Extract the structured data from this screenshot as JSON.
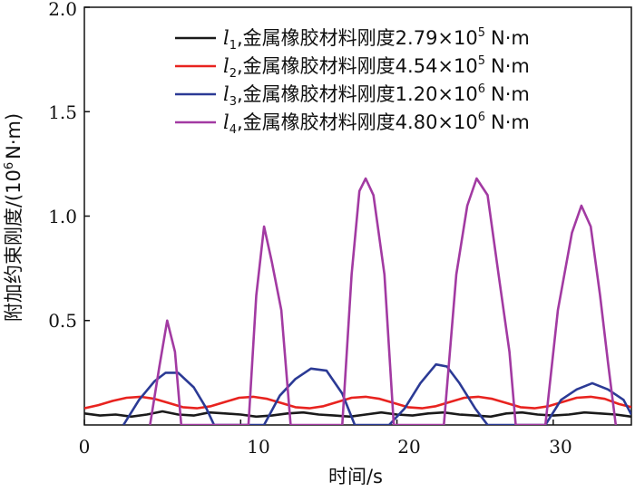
{
  "chart_data": {
    "type": "line",
    "title": "",
    "xlabel": "时间/s",
    "ylabel_main": "附加约束刚度/(10",
    "ylabel_sup": "6",
    "ylabel_tail": "N·m)",
    "xlim": [
      0,
      35
    ],
    "ylim": [
      0,
      2.0
    ],
    "x_ticks": [
      0,
      10,
      20,
      30
    ],
    "x_tick_labels": [
      "0",
      "10",
      "20",
      "30"
    ],
    "y_ticks": [
      0.5,
      1.0,
      1.5,
      2.0
    ],
    "y_tick_labels": [
      "0.5",
      "1.0",
      "1.5",
      "2.0"
    ],
    "legend_position": "top-right",
    "series": [
      {
        "name": "l1",
        "legend_var": "l",
        "legend_sub": "1",
        "legend_text": ",金属橡胶材料刚度2.79×10",
        "legend_sup": "5",
        "legend_unit": "N·m",
        "color": "#1a1a1a",
        "x": [
          0,
          1,
          2,
          3,
          4,
          5,
          6,
          7,
          8,
          9,
          10,
          11,
          12,
          13,
          14,
          15,
          16,
          17,
          18,
          19,
          20,
          21,
          22,
          23,
          24,
          25,
          26,
          27,
          28,
          29,
          30,
          31,
          32,
          33,
          34,
          35
        ],
        "y": [
          0.055,
          0.045,
          0.05,
          0.04,
          0.05,
          0.065,
          0.05,
          0.045,
          0.06,
          0.055,
          0.05,
          0.04,
          0.045,
          0.055,
          0.06,
          0.05,
          0.045,
          0.04,
          0.05,
          0.06,
          0.05,
          0.045,
          0.055,
          0.06,
          0.05,
          0.045,
          0.04,
          0.055,
          0.06,
          0.05,
          0.045,
          0.05,
          0.06,
          0.055,
          0.05,
          0.04
        ]
      },
      {
        "name": "l2",
        "legend_var": "l",
        "legend_sub": "2",
        "legend_text": ",金属橡胶材料刚度4.54×10",
        "legend_sup": "5",
        "legend_unit": "N·m",
        "color": "#e8231f",
        "x": [
          0,
          0.9,
          1.8,
          2.7,
          3.6,
          4.5,
          5.4,
          6.3,
          7.2,
          8.1,
          9.0,
          9.9,
          10.8,
          11.7,
          12.6,
          13.5,
          14.4,
          15.3,
          16.2,
          17.1,
          18.0,
          18.9,
          19.8,
          20.7,
          21.6,
          22.5,
          23.4,
          24.3,
          25.2,
          26.1,
          27.0,
          27.9,
          28.8,
          29.7,
          30.6,
          31.5,
          32.4,
          33.3,
          34.2,
          35.0
        ],
        "y": [
          0.08,
          0.095,
          0.115,
          0.13,
          0.135,
          0.125,
          0.105,
          0.085,
          0.08,
          0.09,
          0.11,
          0.13,
          0.135,
          0.125,
          0.105,
          0.085,
          0.08,
          0.09,
          0.11,
          0.13,
          0.135,
          0.125,
          0.105,
          0.085,
          0.08,
          0.09,
          0.11,
          0.13,
          0.135,
          0.125,
          0.105,
          0.085,
          0.08,
          0.09,
          0.11,
          0.13,
          0.135,
          0.125,
          0.1,
          0.085
        ]
      },
      {
        "name": "l3",
        "legend_var": "l",
        "legend_sub": "3",
        "legend_text": ",金属橡胶材料刚度1.20×10",
        "legend_sup": "6",
        "legend_unit": "N·m",
        "color": "#2b3a95",
        "x": [
          2.5,
          3.5,
          4.5,
          5.2,
          6.0,
          7.0,
          7.8,
          8.3,
          11.5,
          12.5,
          13.5,
          14.5,
          15.5,
          16.5,
          17.3,
          19.5,
          20.5,
          21.5,
          22.5,
          23.2,
          24.0,
          25.0,
          25.8,
          27.5,
          29.5,
          30.5,
          31.5,
          32.5,
          33.5,
          34.5,
          35.0
        ],
        "y": [
          0.0,
          0.12,
          0.21,
          0.25,
          0.25,
          0.18,
          0.08,
          0.0,
          0.0,
          0.14,
          0.22,
          0.27,
          0.26,
          0.15,
          0.0,
          0.0,
          0.08,
          0.2,
          0.29,
          0.28,
          0.2,
          0.08,
          0.0,
          0.0,
          0.0,
          0.12,
          0.17,
          0.2,
          0.17,
          0.12,
          0.05
        ]
      },
      {
        "name": "l4",
        "legend_var": "l",
        "legend_sub": "4",
        "legend_text": ",金属橡胶材料刚度4.80×10",
        "legend_sup": "6",
        "legend_unit": "N·m",
        "color": "#a23aa2",
        "x": [
          4.2,
          4.8,
          5.3,
          5.8,
          6.2,
          10.5,
          11.0,
          11.5,
          12.0,
          12.6,
          13.2,
          16.5,
          17.1,
          17.6,
          18.0,
          18.5,
          19.2,
          19.8,
          20.3,
          23.0,
          23.8,
          24.5,
          25.1,
          25.8,
          26.5,
          27.2,
          27.6,
          29.5,
          30.3,
          31.2,
          31.8,
          32.4,
          33.0,
          33.5,
          34.0
        ],
        "y": [
          0.0,
          0.28,
          0.5,
          0.35,
          0.0,
          0.0,
          0.62,
          0.95,
          0.78,
          0.55,
          0.0,
          0.0,
          0.72,
          1.12,
          1.18,
          1.1,
          0.72,
          0.0,
          0.0,
          0.0,
          0.72,
          1.05,
          1.18,
          1.1,
          0.72,
          0.35,
          0.0,
          0.0,
          0.55,
          0.92,
          1.05,
          0.95,
          0.62,
          0.3,
          0.0
        ]
      }
    ]
  }
}
